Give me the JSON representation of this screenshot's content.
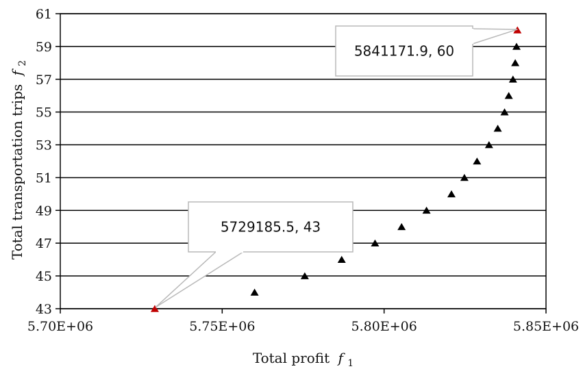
{
  "chart_data": {
    "type": "scatter",
    "xlabel": "Total profit",
    "xlabel_symbol": "f",
    "xlabel_subscript": "1",
    "ylabel": "Total transportation trips",
    "ylabel_symbol": "f",
    "ylabel_subscript": "2",
    "xlim": [
      5700000,
      5850000
    ],
    "ylim": [
      43,
      61
    ],
    "x_ticks": [
      5700000,
      5750000,
      5800000,
      5850000
    ],
    "x_tick_labels": [
      "5.70E+06",
      "5.75E+06",
      "5.80E+06",
      "5.85E+06"
    ],
    "y_ticks": [
      43,
      45,
      47,
      49,
      51,
      53,
      55,
      57,
      59,
      61
    ],
    "y_tick_labels": [
      "43",
      "45",
      "47",
      "49",
      "51",
      "53",
      "55",
      "57",
      "59",
      "61"
    ],
    "grid": "horizontal",
    "marker": "triangle",
    "point_color": "#000000",
    "highlight_color": "#c00000",
    "series": [
      {
        "points": [
          {
            "x": 5760000,
            "y": 44
          },
          {
            "x": 5775500,
            "y": 45
          },
          {
            "x": 5786900,
            "y": 46
          },
          {
            "x": 5797200,
            "y": 47
          },
          {
            "x": 5805400,
            "y": 48
          },
          {
            "x": 5813100,
            "y": 49
          },
          {
            "x": 5820800,
            "y": 50
          },
          {
            "x": 5824800,
            "y": 51
          },
          {
            "x": 5828700,
            "y": 52
          },
          {
            "x": 5832400,
            "y": 53
          },
          {
            "x": 5835100,
            "y": 54
          },
          {
            "x": 5837200,
            "y": 55
          },
          {
            "x": 5838500,
            "y": 56
          },
          {
            "x": 5839800,
            "y": 57
          },
          {
            "x": 5840500,
            "y": 58
          },
          {
            "x": 5840900,
            "y": 59
          }
        ]
      }
    ],
    "highlighted_points": [
      {
        "x": 5729185.5,
        "y": 43,
        "label": "5729185.5, 43"
      },
      {
        "x": 5841171.9,
        "y": 60,
        "label": "5841171.9, 60"
      }
    ]
  }
}
